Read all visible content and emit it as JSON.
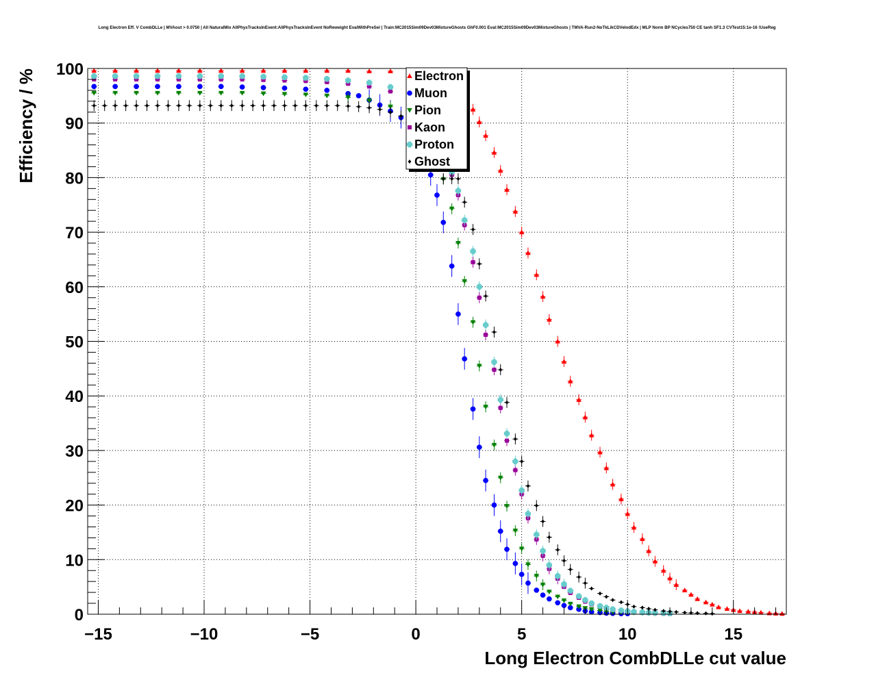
{
  "chart_data": {
    "type": "scatter",
    "title": "Long Electron Eff. V CombDLLe | MVAout > 0.0750 | All NaturalMix AllPhysTracksInEvent:AllPhysTracksInEvent NoReweight EvalWithPreSel | Train:MC2015Sim09Dev03MixtureGhosts GhF0.001 Eval:MC2015Sim09Dev03MixtureGhosts | TMVA-Run2-NoTkLikCDVelodEdx | MLP Norm BP NCycles750 CE tanh SF1.3 CVTest15:1e-16 !UseReg",
    "xlabel": "Long Electron CombDLLe cut value",
    "ylabel": "Efficiency / %",
    "xlim": [
      -15.5,
      17.5
    ],
    "ylim": [
      0,
      100
    ],
    "x_ticks": [
      -15,
      -10,
      -5,
      0,
      5,
      10,
      15
    ],
    "x_tick_labels": [
      "−15",
      "−10",
      "−5",
      "0",
      "5",
      "10",
      "15"
    ],
    "y_ticks": [
      0,
      10,
      20,
      30,
      40,
      50,
      60,
      70,
      80,
      90,
      100
    ],
    "y_tick_labels": [
      "0",
      "10",
      "20",
      "30",
      "40",
      "50",
      "60",
      "70",
      "80",
      "90",
      "100"
    ],
    "grid": true,
    "legend_position": "top-center",
    "series": [
      {
        "name": "Electron",
        "color": "#ff0000",
        "marker": "triangle-up",
        "x": [
          -15.2,
          -14.2,
          -13.2,
          -12.2,
          -11.2,
          -10.2,
          -9.2,
          -8.2,
          -7.2,
          -6.2,
          -5.2,
          -4.2,
          -3.2,
          -2.2,
          -1.2,
          -0.2,
          0.7,
          1.0,
          1.3,
          1.7,
          2.0,
          2.3,
          2.7,
          3.0,
          3.3,
          3.7,
          4.0,
          4.3,
          4.7,
          5.0,
          5.3,
          5.7,
          6.0,
          6.3,
          6.7,
          7.0,
          7.3,
          7.7,
          8.0,
          8.3,
          8.7,
          9.0,
          9.3,
          9.7,
          10.0,
          10.3,
          10.7,
          11.0,
          11.3,
          11.7,
          12.0,
          12.3,
          12.7,
          13.0,
          13.3,
          13.7,
          14.0,
          14.3,
          14.7,
          15.0,
          15.3,
          15.7,
          16.0,
          16.3,
          16.7,
          17.0,
          17.3
        ],
        "y": [
          99.6,
          99.6,
          99.6,
          99.6,
          99.6,
          99.6,
          99.6,
          99.6,
          99.6,
          99.6,
          99.6,
          99.6,
          99.6,
          99.5,
          99.5,
          99.4,
          99.2,
          98.8,
          98.2,
          97.2,
          96.0,
          94.5,
          92.5,
          90.2,
          87.7,
          84.6,
          81.3,
          77.8,
          73.8,
          70.0,
          66.2,
          62.2,
          58.2,
          54.0,
          50.0,
          46.3,
          42.7,
          39.3,
          36.1,
          32.8,
          29.7,
          26.8,
          23.8,
          21.1,
          18.4,
          15.9,
          13.8,
          11.6,
          9.7,
          8.0,
          6.6,
          5.4,
          4.4,
          3.6,
          2.8,
          2.2,
          1.8,
          1.3,
          1.0,
          0.8,
          0.6,
          0.5,
          0.4,
          0.3,
          0.2,
          0.15,
          0.1
        ]
      },
      {
        "name": "Muon",
        "color": "#0000ff",
        "marker": "circle",
        "x": [
          -15.2,
          -14.2,
          -13.2,
          -12.2,
          -11.2,
          -10.2,
          -9.2,
          -8.2,
          -7.2,
          -6.2,
          -5.2,
          -4.2,
          -3.2,
          -2.7,
          -2.2,
          -1.7,
          -1.2,
          -0.7,
          -0.3,
          0.0,
          0.3,
          0.7,
          1.0,
          1.3,
          1.7,
          2.0,
          2.3,
          2.7,
          3.0,
          3.3,
          3.7,
          4.0,
          4.3,
          4.7,
          5.0,
          5.3,
          5.7,
          6.0,
          6.3,
          6.7,
          7.0,
          7.3,
          7.7,
          8.0,
          8.3,
          8.7,
          9.0,
          9.3,
          9.7,
          10.0
        ],
        "y": [
          96.7,
          96.7,
          96.7,
          96.7,
          96.7,
          96.7,
          96.7,
          96.6,
          96.5,
          96.4,
          96.2,
          96.0,
          95.4,
          95.0,
          94.2,
          93.3,
          92.2,
          91.0,
          89.5,
          87.5,
          84.0,
          80.5,
          76.8,
          71.8,
          63.8,
          55.0,
          46.8,
          37.6,
          30.6,
          24.5,
          20.0,
          15.2,
          11.9,
          9.3,
          7.3,
          5.7,
          4.4,
          3.5,
          2.8,
          2.1,
          1.6,
          1.2,
          0.9,
          0.6,
          0.4,
          0.3,
          0.2,
          0.15,
          0.1,
          0.1
        ]
      },
      {
        "name": "Pion",
        "color": "#008000",
        "marker": "triangle-down",
        "x": [
          -15.2,
          -14.2,
          -13.2,
          -12.2,
          -11.2,
          -10.2,
          -9.2,
          -8.2,
          -7.2,
          -6.2,
          -5.2,
          -4.2,
          -3.2,
          -2.2,
          -1.2,
          -0.2,
          0.7,
          1.0,
          1.3,
          1.7,
          2.0,
          2.3,
          2.7,
          3.0,
          3.3,
          3.7,
          4.0,
          4.3,
          4.7,
          5.0,
          5.3,
          5.7,
          6.0,
          6.3,
          6.7,
          7.0,
          7.3,
          7.7,
          8.0,
          8.3,
          8.7,
          9.0,
          9.3,
          9.7,
          10.0,
          10.3,
          10.7,
          11.0,
          11.3,
          11.7,
          12.0
        ],
        "y": [
          95.5,
          95.5,
          95.5,
          95.5,
          95.5,
          95.5,
          95.5,
          95.5,
          95.4,
          95.3,
          95.2,
          95.0,
          94.7,
          94.1,
          93.0,
          91.0,
          86.0,
          83.0,
          79.7,
          74.3,
          68.0,
          61.0,
          53.5,
          45.5,
          38.0,
          31.0,
          25.0,
          19.8,
          15.3,
          12.0,
          9.1,
          7.0,
          5.4,
          4.1,
          3.2,
          2.5,
          1.9,
          1.4,
          1.1,
          0.9,
          0.7,
          0.5,
          0.4,
          0.35,
          0.3,
          0.25,
          0.2,
          0.15,
          0.1,
          0.1,
          0.1
        ]
      },
      {
        "name": "Kaon",
        "color": "#990099",
        "marker": "square",
        "x": [
          -15.2,
          -14.2,
          -13.2,
          -12.2,
          -11.2,
          -10.2,
          -9.2,
          -8.2,
          -7.2,
          -6.2,
          -5.2,
          -4.2,
          -3.2,
          -2.2,
          -1.2,
          -0.2,
          0.7,
          1.0,
          1.3,
          1.7,
          2.0,
          2.3,
          2.7,
          3.0,
          3.3,
          3.7,
          4.0,
          4.3,
          4.7,
          5.0,
          5.3,
          5.7,
          6.0,
          6.3,
          6.7,
          7.0,
          7.3,
          7.7,
          8.0,
          8.3,
          8.7,
          9.0,
          9.3,
          9.7,
          10.0,
          10.3,
          10.7,
          11.0,
          11.3,
          11.7,
          12.0
        ],
        "y": [
          98.0,
          98.0,
          98.0,
          98.0,
          98.0,
          98.0,
          98.0,
          98.0,
          97.9,
          97.8,
          97.7,
          97.5,
          97.2,
          96.7,
          95.8,
          94.3,
          89.5,
          86.8,
          83.0,
          80.5,
          76.8,
          71.3,
          64.5,
          58.0,
          51.2,
          44.8,
          37.8,
          31.8,
          26.4,
          22.0,
          17.6,
          13.7,
          10.7,
          8.3,
          6.5,
          5.0,
          3.9,
          3.0,
          2.3,
          1.8,
          1.4,
          1.1,
          0.8,
          0.6,
          0.5,
          0.4,
          0.3,
          0.25,
          0.2,
          0.15,
          0.1
        ]
      },
      {
        "name": "Proton",
        "color": "#66cccc",
        "marker": "plus",
        "x": [
          -15.2,
          -14.2,
          -13.2,
          -12.2,
          -11.2,
          -10.2,
          -9.2,
          -8.2,
          -7.2,
          -6.2,
          -5.2,
          -4.2,
          -3.2,
          -2.2,
          -1.2,
          -0.2,
          0.7,
          1.0,
          1.3,
          1.7,
          2.0,
          2.3,
          2.7,
          3.0,
          3.3,
          3.7,
          4.0,
          4.3,
          4.7,
          5.0,
          5.3,
          5.7,
          6.0,
          6.3,
          6.7,
          7.0,
          7.3,
          7.7,
          8.0,
          8.3,
          8.7,
          9.0,
          9.3,
          9.7,
          10.0,
          10.3,
          10.7,
          11.0,
          11.3,
          11.7,
          12.0
        ],
        "y": [
          98.6,
          98.6,
          98.6,
          98.6,
          98.6,
          98.6,
          98.6,
          98.6,
          98.5,
          98.4,
          98.3,
          98.1,
          97.8,
          97.4,
          96.6,
          95.0,
          90.5,
          87.5,
          83.8,
          81.0,
          77.6,
          72.2,
          66.5,
          60.0,
          53.0,
          46.2,
          39.3,
          33.1,
          28.0,
          22.7,
          18.4,
          14.6,
          11.6,
          9.0,
          7.0,
          5.5,
          4.3,
          3.3,
          2.6,
          2.0,
          1.5,
          1.2,
          0.9,
          0.7,
          0.55,
          0.45,
          0.35,
          0.3,
          0.25,
          0.2,
          0.15
        ]
      },
      {
        "name": "Ghost",
        "color": "#000000",
        "marker": "diamond",
        "x": [
          -15.2,
          -14.7,
          -14.2,
          -13.7,
          -13.2,
          -12.7,
          -12.2,
          -11.7,
          -11.2,
          -10.7,
          -10.2,
          -9.7,
          -9.2,
          -8.7,
          -8.2,
          -7.7,
          -7.2,
          -6.7,
          -6.2,
          -5.7,
          -5.2,
          -4.7,
          -4.2,
          -3.7,
          -3.2,
          -2.7,
          -2.2,
          -1.7,
          -1.2,
          -0.7,
          -0.2,
          0.7,
          1.0,
          1.3,
          1.7,
          2.0,
          2.3,
          2.7,
          3.0,
          3.3,
          3.7,
          4.0,
          4.3,
          4.7,
          5.0,
          5.3,
          5.7,
          6.0,
          6.3,
          6.7,
          7.0,
          7.3,
          7.7,
          8.0,
          8.3,
          8.7,
          9.0,
          9.3,
          9.7,
          10.0,
          10.3,
          10.7,
          11.0,
          11.3,
          11.7,
          12.0,
          12.3,
          12.7,
          13.0,
          13.3,
          13.7,
          14.0
        ],
        "y": [
          93.2,
          93.2,
          93.2,
          93.2,
          93.2,
          93.2,
          93.2,
          93.2,
          93.2,
          93.2,
          93.2,
          93.2,
          93.2,
          93.2,
          93.2,
          93.2,
          93.2,
          93.2,
          93.2,
          93.2,
          93.2,
          93.2,
          93.2,
          93.2,
          93.1,
          93.0,
          92.8,
          92.5,
          92.0,
          91.3,
          90.0,
          86.0,
          83.0,
          79.8,
          79.8,
          79.8,
          75.5,
          70.5,
          64.2,
          58.3,
          51.7,
          44.8,
          38.8,
          32.1,
          28.0,
          23.5,
          19.9,
          17.0,
          14.1,
          11.8,
          9.8,
          8.2,
          6.8,
          5.7,
          4.7,
          3.8,
          3.2,
          2.6,
          2.2,
          1.8,
          1.4,
          1.2,
          1.0,
          0.8,
          0.6,
          0.5,
          0.4,
          0.3,
          0.25,
          0.2,
          0.15,
          0.1
        ]
      }
    ]
  }
}
